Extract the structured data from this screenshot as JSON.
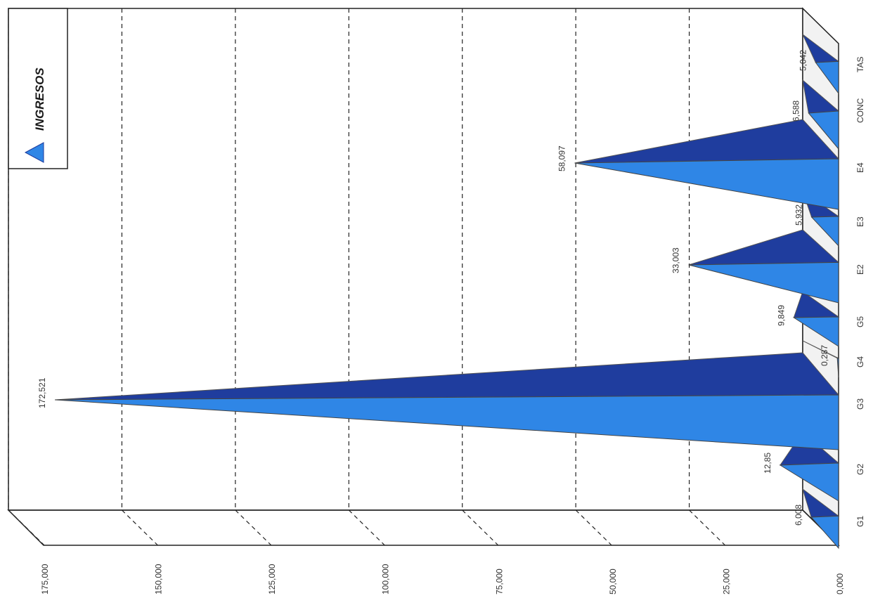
{
  "chart_data": {
    "type": "bar",
    "style": "3d-pyramid",
    "orientation": "rotated-90-clockwise",
    "categories": [
      "G1",
      "G2",
      "G3",
      "G4",
      "G5",
      "E2",
      "E3",
      "E4",
      "CONC",
      "TAS"
    ],
    "series": [
      {
        "name": "INGRESOS",
        "values": [
          6.008,
          12.85,
          172.521,
          0.287,
          9.849,
          33.003,
          5.932,
          58.097,
          6.588,
          5.042
        ],
        "value_labels": [
          "6,008",
          "12,85",
          "172,521",
          "0,287",
          "9,849",
          "33,003",
          "5,932",
          "58,097",
          "6,588",
          "5,042"
        ],
        "color_light": "#2f86e6",
        "color_dark": "#1f3d9e"
      }
    ],
    "y_ticks": [
      0,
      25,
      50,
      75,
      100,
      125,
      150,
      175
    ],
    "y_tick_labels": [
      "0,000",
      "25,000",
      "50,000",
      "75,000",
      "100,000",
      "125,000",
      "150,000",
      "175,000"
    ],
    "ylim": [
      0,
      175
    ],
    "grid": true,
    "legend": {
      "position": "top-right",
      "entries": [
        "INGRESOS"
      ],
      "symbol": "triangle"
    },
    "title": "",
    "xlabel": "",
    "ylabel": ""
  }
}
